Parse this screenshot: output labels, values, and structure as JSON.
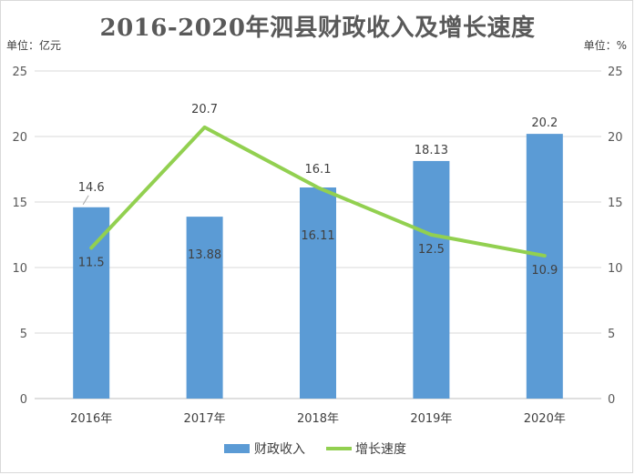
{
  "chart_data": {
    "type": "bar",
    "title": "2016-2020年泗县财政收入及增长速度",
    "left_unit": "单位：亿元",
    "right_unit": "单位：%",
    "categories": [
      "2016年",
      "2017年",
      "2018年",
      "2019年",
      "2020年"
    ],
    "series": [
      {
        "name": "财政收入",
        "type": "bar",
        "axis": "left",
        "values": [
          14.6,
          13.88,
          16.11,
          18.13,
          20.2
        ],
        "labels": [
          "14.6",
          "13.88",
          "16.11",
          "18.13",
          "20.2"
        ],
        "color": "#5b9bd5"
      },
      {
        "name": "增长速度",
        "type": "line",
        "axis": "right",
        "values": [
          11.5,
          20.7,
          16.1,
          12.5,
          10.9
        ],
        "labels": [
          "11.5",
          "20.7",
          "16.1",
          "12.5",
          "10.9"
        ],
        "color": "#92d050"
      }
    ],
    "ylim_left": [
      0,
      25
    ],
    "ylim_right": [
      0,
      25
    ],
    "yticks_left": [
      "0",
      "5",
      "10",
      "15",
      "20",
      "25"
    ],
    "yticks_right": [
      "0",
      "5",
      "10",
      "15",
      "20",
      "25"
    ],
    "tick_values": [
      0,
      5,
      10,
      15,
      20,
      25
    ],
    "grid": true,
    "legend_position": "bottom"
  }
}
